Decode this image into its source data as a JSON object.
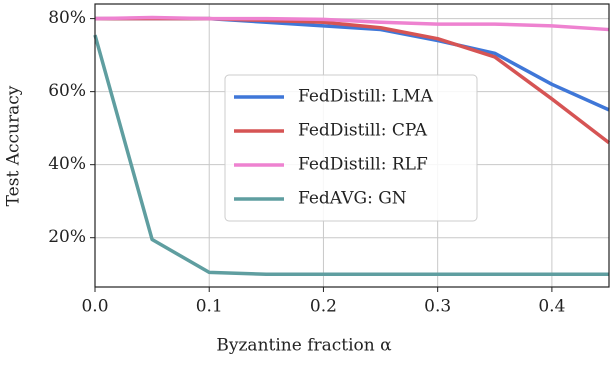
{
  "chart_data": {
    "type": "line",
    "xlabel": "Byzantine fraction α",
    "ylabel": "Test Accuracy",
    "x": [
      0,
      0.05,
      0.1,
      0.15,
      0.2,
      0.25,
      0.3,
      0.35,
      0.4,
      0.45
    ],
    "series": [
      {
        "name": "FedDistill: LMA",
        "color": "#3f77d8",
        "values": [
          80,
          80,
          80,
          79,
          78,
          77,
          74,
          70.5,
          62,
          55
        ]
      },
      {
        "name": "FedDistill: CPA",
        "color": "#d65454",
        "values": [
          80,
          80,
          80,
          79.5,
          79,
          77.5,
          74.5,
          69.5,
          58,
          46
        ]
      },
      {
        "name": "FedDistill: RLF",
        "color": "#ee82d0",
        "values": [
          80,
          80.3,
          80,
          80,
          79.8,
          79,
          78.5,
          78.5,
          78,
          77
        ]
      },
      {
        "name": "FedAVG: GN",
        "color": "#5f9ea0",
        "values": [
          75.5,
          19.5,
          10.5,
          10,
          10,
          10,
          10,
          10,
          10,
          10
        ]
      }
    ],
    "xlim": [
      0,
      0.45
    ],
    "xticks": [
      {
        "value": 0,
        "label": "0.0"
      },
      0.1,
      0.2,
      0.3,
      0.4
    ],
    "ylim": [
      6.5,
      84
    ],
    "yticks": [
      {
        "value": 20,
        "label": "20%"
      },
      {
        "value": 40,
        "label": "40%"
      },
      {
        "value": 60,
        "label": "60%"
      },
      {
        "value": 80,
        "label": "80%"
      }
    ],
    "grid": true,
    "legend": "center"
  }
}
